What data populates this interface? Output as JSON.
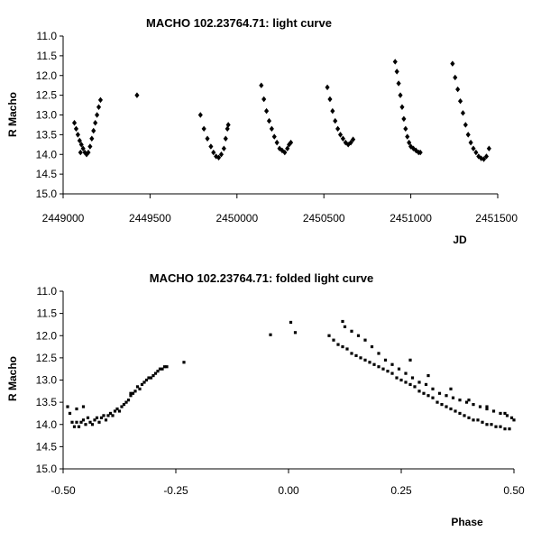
{
  "chart_data": [
    {
      "type": "scatter",
      "title": "MACHO 102.23764.71: light curve",
      "xlabel": "JD",
      "ylabel": "R Macho",
      "xlim": [
        2449000,
        2451500
      ],
      "ylim": [
        11.0,
        15.0
      ],
      "y_inverted": true,
      "grid": false,
      "xticks": [
        2449000,
        2449500,
        2450000,
        2450500,
        2451000,
        2451500
      ],
      "xtick_labels": [
        "2449000",
        "2449500",
        "2450000",
        "2450500",
        "2451000",
        "2451500"
      ],
      "yticks": [
        11.0,
        11.5,
        12.0,
        12.5,
        13.0,
        13.5,
        14.0,
        14.5,
        15.0
      ],
      "ytick_labels": [
        "11.0",
        "11.5",
        "12.0",
        "12.5",
        "13.0",
        "13.5",
        "14.0",
        "14.5",
        "15.0"
      ],
      "marker_color": "#000000",
      "series": [
        {
          "name": "R Macho",
          "points": [
            [
              2449065,
              13.2
            ],
            [
              2449075,
              13.35
            ],
            [
              2449085,
              13.5
            ],
            [
              2449095,
              13.65
            ],
            [
              2449100,
              13.95
            ],
            [
              2449105,
              13.75
            ],
            [
              2449115,
              13.85
            ],
            [
              2449125,
              13.95
            ],
            [
              2449135,
              14.0
            ],
            [
              2449145,
              13.95
            ],
            [
              2449155,
              13.8
            ],
            [
              2449165,
              13.6
            ],
            [
              2449175,
              13.4
            ],
            [
              2449185,
              13.2
            ],
            [
              2449195,
              13.0
            ],
            [
              2449205,
              12.8
            ],
            [
              2449215,
              12.62
            ],
            [
              2449425,
              12.5
            ],
            [
              2449790,
              13.0
            ],
            [
              2449810,
              13.35
            ],
            [
              2449830,
              13.6
            ],
            [
              2449850,
              13.8
            ],
            [
              2449865,
              13.95
            ],
            [
              2449880,
              14.05
            ],
            [
              2449895,
              14.08
            ],
            [
              2449910,
              14.0
            ],
            [
              2449925,
              13.85
            ],
            [
              2449935,
              13.6
            ],
            [
              2449945,
              13.35
            ],
            [
              2449950,
              13.25
            ],
            [
              2450140,
              12.25
            ],
            [
              2450155,
              12.6
            ],
            [
              2450170,
              12.9
            ],
            [
              2450185,
              13.15
            ],
            [
              2450200,
              13.35
            ],
            [
              2450215,
              13.55
            ],
            [
              2450230,
              13.7
            ],
            [
              2450245,
              13.85
            ],
            [
              2450260,
              13.9
            ],
            [
              2450275,
              13.95
            ],
            [
              2450290,
              13.85
            ],
            [
              2450300,
              13.75
            ],
            [
              2450310,
              13.7
            ],
            [
              2450520,
              12.3
            ],
            [
              2450535,
              12.6
            ],
            [
              2450550,
              12.9
            ],
            [
              2450565,
              13.15
            ],
            [
              2450580,
              13.35
            ],
            [
              2450595,
              13.5
            ],
            [
              2450610,
              13.6
            ],
            [
              2450625,
              13.7
            ],
            [
              2450640,
              13.75
            ],
            [
              2450655,
              13.7
            ],
            [
              2450668,
              13.62
            ],
            [
              2450910,
              11.65
            ],
            [
              2450920,
              11.9
            ],
            [
              2450930,
              12.2
            ],
            [
              2450940,
              12.5
            ],
            [
              2450950,
              12.8
            ],
            [
              2450960,
              13.1
            ],
            [
              2450970,
              13.35
            ],
            [
              2450980,
              13.55
            ],
            [
              2450990,
              13.7
            ],
            [
              2451000,
              13.8
            ],
            [
              2451015,
              13.85
            ],
            [
              2451030,
              13.9
            ],
            [
              2451045,
              13.95
            ],
            [
              2451055,
              13.95
            ],
            [
              2451240,
              11.7
            ],
            [
              2451255,
              12.05
            ],
            [
              2451270,
              12.35
            ],
            [
              2451285,
              12.65
            ],
            [
              2451300,
              12.95
            ],
            [
              2451315,
              13.25
            ],
            [
              2451330,
              13.5
            ],
            [
              2451345,
              13.7
            ],
            [
              2451360,
              13.85
            ],
            [
              2451375,
              13.95
            ],
            [
              2451390,
              14.05
            ],
            [
              2451405,
              14.1
            ],
            [
              2451420,
              14.12
            ],
            [
              2451435,
              14.05
            ],
            [
              2451450,
              13.85
            ]
          ]
        }
      ]
    },
    {
      "type": "scatter",
      "title": "MACHO 102.23764.71: folded light curve",
      "xlabel": "Phase",
      "ylabel": "R Macho",
      "xlim": [
        -0.5,
        0.5
      ],
      "ylim": [
        11.0,
        15.0
      ],
      "y_inverted": true,
      "grid": false,
      "xticks": [
        -0.5,
        -0.25,
        0.0,
        0.25,
        0.5
      ],
      "xtick_labels": [
        "-0.50",
        "-0.25",
        "0.00",
        "0.25",
        "0.50"
      ],
      "yticks": [
        11.0,
        11.5,
        12.0,
        12.5,
        13.0,
        13.5,
        14.0,
        14.5,
        15.0
      ],
      "ytick_labels": [
        "11.0",
        "11.5",
        "12.0",
        "12.5",
        "13.0",
        "13.5",
        "14.0",
        "14.5",
        "15.0"
      ],
      "marker_color": "#000000",
      "series": [
        {
          "name": "R Macho",
          "points": [
            [
              -0.49,
              13.6
            ],
            [
              -0.485,
              13.75
            ],
            [
              -0.48,
              13.95
            ],
            [
              -0.475,
              14.05
            ],
            [
              -0.47,
              13.95
            ],
            [
              -0.465,
              14.05
            ],
            [
              -0.46,
              13.95
            ],
            [
              -0.455,
              13.9
            ],
            [
              -0.45,
              14.0
            ],
            [
              -0.445,
              13.85
            ],
            [
              -0.44,
              13.95
            ],
            [
              -0.435,
              14.0
            ],
            [
              -0.43,
              13.9
            ],
            [
              -0.425,
              13.85
            ],
            [
              -0.42,
              13.95
            ],
            [
              -0.415,
              13.85
            ],
            [
              -0.41,
              13.8
            ],
            [
              -0.405,
              13.9
            ],
            [
              -0.4,
              13.8
            ],
            [
              -0.395,
              13.75
            ],
            [
              -0.39,
              13.8
            ],
            [
              -0.385,
              13.7
            ],
            [
              -0.38,
              13.65
            ],
            [
              -0.375,
              13.7
            ],
            [
              -0.37,
              13.6
            ],
            [
              -0.365,
              13.55
            ],
            [
              -0.36,
              13.5
            ],
            [
              -0.355,
              13.45
            ],
            [
              -0.35,
              13.35
            ],
            [
              -0.345,
              13.3
            ],
            [
              -0.34,
              13.25
            ],
            [
              -0.335,
              13.15
            ],
            [
              -0.33,
              13.2
            ],
            [
              -0.325,
              13.1
            ],
            [
              -0.32,
              13.05
            ],
            [
              -0.315,
              13.0
            ],
            [
              -0.31,
              12.95
            ],
            [
              -0.305,
              12.95
            ],
            [
              -0.3,
              12.9
            ],
            [
              -0.295,
              12.85
            ],
            [
              -0.29,
              12.8
            ],
            [
              -0.285,
              12.75
            ],
            [
              -0.28,
              12.75
            ],
            [
              -0.275,
              12.7
            ],
            [
              -0.27,
              12.7
            ],
            [
              -0.232,
              12.6
            ],
            [
              -0.455,
              13.6
            ],
            [
              -0.47,
              13.65
            ],
            [
              -0.35,
              13.3
            ],
            [
              -0.04,
              11.98
            ],
            [
              0.005,
              11.7
            ],
            [
              0.015,
              11.93
            ],
            [
              0.09,
              12.0
            ],
            [
              0.1,
              12.1
            ],
            [
              0.11,
              12.2
            ],
            [
              0.12,
              12.25
            ],
            [
              0.13,
              12.3
            ],
            [
              0.14,
              12.4
            ],
            [
              0.15,
              12.45
            ],
            [
              0.16,
              12.5
            ],
            [
              0.17,
              12.55
            ],
            [
              0.18,
              12.6
            ],
            [
              0.19,
              12.65
            ],
            [
              0.2,
              12.7
            ],
            [
              0.21,
              12.75
            ],
            [
              0.22,
              12.8
            ],
            [
              0.23,
              12.85
            ],
            [
              0.24,
              12.95
            ],
            [
              0.25,
              13.0
            ],
            [
              0.26,
              13.05
            ],
            [
              0.27,
              13.1
            ],
            [
              0.28,
              13.15
            ],
            [
              0.29,
              13.25
            ],
            [
              0.3,
              13.3
            ],
            [
              0.31,
              13.35
            ],
            [
              0.32,
              13.4
            ],
            [
              0.33,
              13.5
            ],
            [
              0.34,
              13.55
            ],
            [
              0.35,
              13.6
            ],
            [
              0.36,
              13.65
            ],
            [
              0.37,
              13.7
            ],
            [
              0.38,
              13.75
            ],
            [
              0.39,
              13.8
            ],
            [
              0.4,
              13.85
            ],
            [
              0.41,
              13.9
            ],
            [
              0.42,
              13.9
            ],
            [
              0.43,
              13.95
            ],
            [
              0.44,
              14.0
            ],
            [
              0.45,
              14.0
            ],
            [
              0.46,
              14.05
            ],
            [
              0.47,
              14.05
            ],
            [
              0.48,
              14.1
            ],
            [
              0.49,
              14.1
            ],
            [
              0.12,
              11.68
            ],
            [
              0.125,
              11.8
            ],
            [
              0.14,
              11.9
            ],
            [
              0.155,
              12.0
            ],
            [
              0.17,
              12.1
            ],
            [
              0.185,
              12.25
            ],
            [
              0.2,
              12.4
            ],
            [
              0.215,
              12.55
            ],
            [
              0.23,
              12.65
            ],
            [
              0.245,
              12.75
            ],
            [
              0.26,
              12.85
            ],
            [
              0.275,
              12.95
            ],
            [
              0.29,
              13.05
            ],
            [
              0.305,
              13.1
            ],
            [
              0.32,
              13.2
            ],
            [
              0.335,
              13.3
            ],
            [
              0.35,
              13.35
            ],
            [
              0.365,
              13.4
            ],
            [
              0.38,
              13.45
            ],
            [
              0.395,
              13.5
            ],
            [
              0.41,
              13.55
            ],
            [
              0.425,
              13.6
            ],
            [
              0.44,
              13.65
            ],
            [
              0.455,
              13.7
            ],
            [
              0.47,
              13.75
            ],
            [
              0.485,
              13.8
            ],
            [
              0.495,
              13.85
            ],
            [
              0.27,
              12.55
            ],
            [
              0.31,
              12.9
            ],
            [
              0.36,
              13.2
            ],
            [
              0.4,
              13.45
            ],
            [
              0.44,
              13.6
            ],
            [
              0.48,
              13.75
            ],
            [
              0.5,
              13.9
            ]
          ]
        }
      ]
    }
  ]
}
